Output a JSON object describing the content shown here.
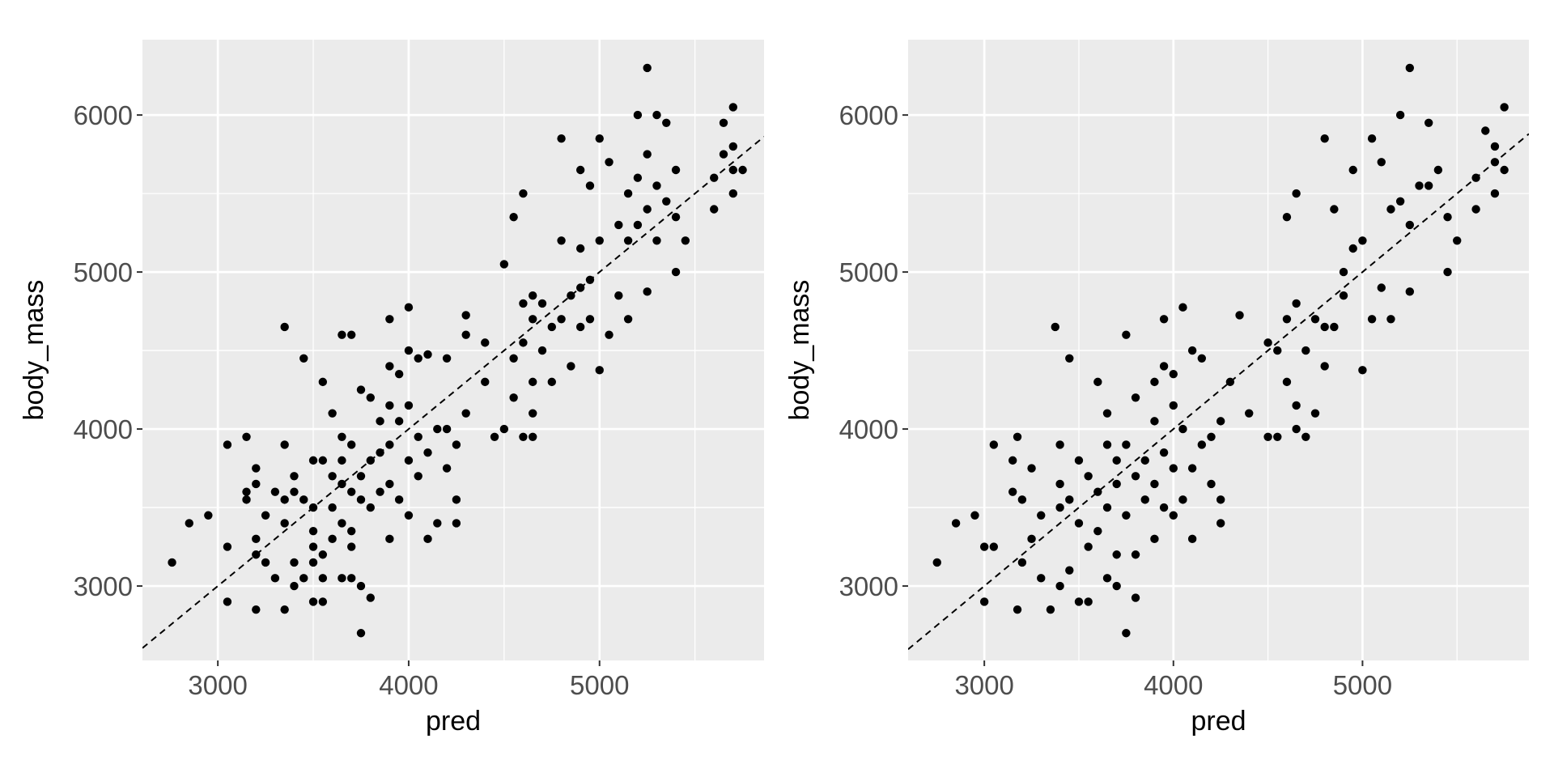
{
  "chart_data": [
    {
      "type": "scatter",
      "xlabel": "pred",
      "ylabel": "body_mass",
      "color": "#000000",
      "background": "#ebebeb",
      "grid": true,
      "reference_line": "identity",
      "xlim": [
        2605,
        5862
      ],
      "ylim": [
        2526,
        6480
      ],
      "xticks": [
        3000,
        4000,
        5000
      ],
      "yticks": [
        3000,
        4000,
        5000,
        6000
      ],
      "xminor": [
        3500,
        4500,
        5500
      ],
      "yminor": [
        3500,
        4500,
        5500
      ],
      "x": [
        2760,
        2850,
        2950,
        3050,
        3050,
        3050,
        3150,
        3150,
        3150,
        3200,
        3200,
        3200,
        3200,
        3200,
        3250,
        3250,
        3300,
        3300,
        3350,
        3350,
        3350,
        3350,
        3350,
        3400,
        3400,
        3400,
        3400,
        3450,
        3450,
        3450,
        3500,
        3500,
        3500,
        3500,
        3500,
        3500,
        3550,
        3550,
        3550,
        3550,
        3550,
        3600,
        3600,
        3600,
        3600,
        3650,
        3650,
        3650,
        3650,
        3650,
        3650,
        3700,
        3700,
        3700,
        3700,
        3700,
        3700,
        3750,
        3750,
        3750,
        3750,
        3750,
        3800,
        3800,
        3800,
        3800,
        3850,
        3850,
        3850,
        3900,
        3900,
        3900,
        3900,
        3900,
        3900,
        3950,
        3950,
        3950,
        4000,
        4000,
        4000,
        4000,
        4000,
        4050,
        4050,
        4050,
        4100,
        4100,
        4100,
        4150,
        4150,
        4200,
        4200,
        4200,
        4250,
        4250,
        4250,
        4300,
        4300,
        4300,
        4400,
        4400,
        4450,
        4500,
        4500,
        4550,
        4550,
        4550,
        4600,
        4600,
        4600,
        4600,
        4650,
        4650,
        4650,
        4650,
        4650,
        4700,
        4700,
        4750,
        4750,
        4800,
        4800,
        4800,
        4850,
        4850,
        4900,
        4900,
        4900,
        4900,
        4950,
        4950,
        4950,
        5000,
        5000,
        5000,
        5050,
        5050,
        5100,
        5100,
        5150,
        5150,
        5150,
        5200,
        5200,
        5200,
        5250,
        5250,
        5250,
        5250,
        5300,
        5300,
        5300,
        5350,
        5350,
        5400,
        5400,
        5400,
        5450,
        5600,
        5600,
        5650,
        5650,
        5700,
        5700,
        5700,
        5700,
        5750
      ],
      "y": [
        3150,
        3400,
        3450,
        3250,
        3900,
        2900,
        3950,
        3600,
        3550,
        3750,
        3650,
        3300,
        3200,
        2850,
        3150,
        3450,
        3050,
        3600,
        4650,
        3900,
        3550,
        3400,
        2850,
        3700,
        3600,
        3150,
        3000,
        4450,
        3550,
        3050,
        3800,
        3500,
        3350,
        3250,
        3150,
        2900,
        4300,
        3800,
        3200,
        3050,
        2900,
        4100,
        3700,
        3500,
        3300,
        4600,
        3950,
        3800,
        3650,
        3400,
        3050,
        4600,
        3900,
        3600,
        3350,
        3250,
        3050,
        4250,
        3700,
        3550,
        3000,
        2700,
        4200,
        3800,
        3500,
        2925,
        4050,
        3850,
        3600,
        4700,
        4400,
        4150,
        3900,
        3650,
        3300,
        4350,
        4050,
        3550,
        4775,
        4500,
        4150,
        3800,
        3450,
        4450,
        3950,
        3700,
        4475,
        3850,
        3300,
        4000,
        3400,
        4450,
        4000,
        3750,
        3900,
        3550,
        3400,
        4725,
        4600,
        4100,
        4550,
        4300,
        3950,
        5050,
        4000,
        5350,
        4450,
        4200,
        5500,
        4800,
        4550,
        3950,
        4850,
        4700,
        4300,
        4100,
        3950,
        4800,
        4500,
        4650,
        4300,
        5850,
        5200,
        4700,
        4850,
        4400,
        5650,
        5150,
        4900,
        4650,
        5550,
        4950,
        4700,
        5850,
        5200,
        4375,
        5700,
        4600,
        5300,
        4850,
        5500,
        5200,
        4700,
        6000,
        5600,
        5300,
        6300,
        5750,
        5400,
        4875,
        6000,
        5550,
        5200,
        5950,
        5450,
        5650,
        5350,
        5000,
        5200,
        5600,
        5400,
        5950,
        5750,
        6050,
        5800,
        5650,
        5500,
        5650
      ]
    },
    {
      "type": "scatter",
      "xlabel": "pred",
      "ylabel": "body_mass",
      "color": "#000000",
      "background": "#ebebeb",
      "grid": true,
      "reference_line": "identity",
      "xlim": [
        2597,
        5880
      ],
      "ylim": [
        2526,
        6480
      ],
      "xticks": [
        3000,
        4000,
        5000
      ],
      "yticks": [
        3000,
        4000,
        5000,
        6000
      ],
      "xminor": [
        3500,
        4500,
        5500
      ],
      "yminor": [
        3500,
        4500,
        5500
      ],
      "x": [
        2750,
        2850,
        2950,
        3000,
        3000,
        3050,
        3050,
        3150,
        3150,
        3175,
        3175,
        3200,
        3200,
        3250,
        3250,
        3300,
        3300,
        3350,
        3375,
        3400,
        3400,
        3400,
        3400,
        3450,
        3450,
        3450,
        3500,
        3500,
        3500,
        3550,
        3550,
        3550,
        3600,
        3600,
        3600,
        3650,
        3650,
        3650,
        3650,
        3700,
        3700,
        3700,
        3700,
        3750,
        3750,
        3750,
        3750,
        3800,
        3800,
        3800,
        3800,
        3850,
        3850,
        3900,
        3900,
        3900,
        3900,
        3950,
        3950,
        3950,
        3950,
        4000,
        4000,
        4000,
        4000,
        4050,
        4050,
        4050,
        4100,
        4100,
        4100,
        4150,
        4150,
        4200,
        4200,
        4250,
        4250,
        4250,
        4300,
        4350,
        4400,
        4500,
        4500,
        4550,
        4550,
        4600,
        4600,
        4600,
        4650,
        4650,
        4650,
        4650,
        4700,
        4700,
        4750,
        4750,
        4800,
        4800,
        4800,
        4850,
        4850,
        4900,
        4900,
        4950,
        4950,
        5000,
        5000,
        5050,
        5050,
        5100,
        5100,
        5150,
        5150,
        5200,
        5200,
        5250,
        5250,
        5250,
        5300,
        5350,
        5350,
        5400,
        5450,
        5450,
        5500,
        5600,
        5600,
        5650,
        5700,
        5700,
        5700,
        5750,
        5750
      ],
      "y": [
        3150,
        3400,
        3450,
        2900,
        3250,
        3900,
        3250,
        3800,
        3600,
        3950,
        2850,
        3550,
        3150,
        3750,
        3300,
        3050,
        3450,
        2850,
        4650,
        3900,
        3650,
        3500,
        3000,
        4450,
        3550,
        3100,
        3800,
        3400,
        2900,
        3700,
        3250,
        2900,
        4300,
        3600,
        3350,
        4100,
        3900,
        3500,
        3050,
        3800,
        3650,
        3200,
        3000,
        4600,
        3900,
        3450,
        2700,
        4200,
        3700,
        3200,
        2925,
        3800,
        3550,
        4300,
        4050,
        3650,
        3300,
        4700,
        4400,
        3850,
        3500,
        4350,
        4150,
        3750,
        3450,
        4775,
        4000,
        3550,
        4500,
        3750,
        3300,
        4450,
        3900,
        3950,
        3650,
        4050,
        3550,
        3400,
        4300,
        4725,
        4100,
        4550,
        3950,
        4500,
        3950,
        5350,
        4700,
        4300,
        5500,
        4800,
        4150,
        4000,
        4500,
        3950,
        4700,
        4100,
        5850,
        4650,
        4400,
        5400,
        4650,
        5000,
        4850,
        5650,
        5150,
        5200,
        4375,
        5850,
        4700,
        5700,
        4900,
        5400,
        4700,
        6000,
        5450,
        6300,
        5300,
        4875,
        5550,
        5950,
        5550,
        5650,
        5350,
        5000,
        5200,
        5600,
        5400,
        5900,
        5800,
        5700,
        5500,
        6050,
        5650
      ]
    }
  ]
}
